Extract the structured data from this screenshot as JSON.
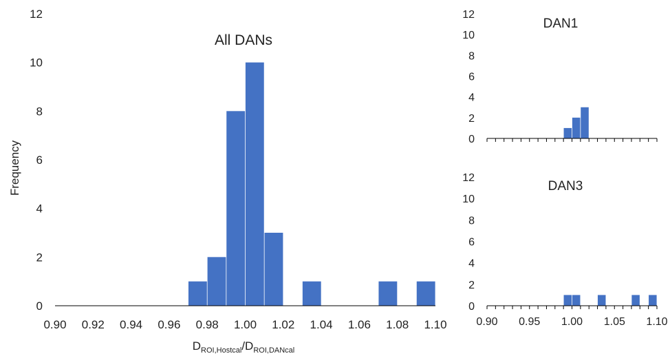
{
  "colors": {
    "bar": "#4472C4",
    "axis": "#000000",
    "text": "#222222"
  },
  "chart_data": [
    {
      "id": "all",
      "type": "bar",
      "title": "All DANs",
      "ylabel": "Frequency",
      "xlabel": {
        "main": "D",
        "sub1": "ROI,Hostcal",
        "slash": "/D",
        "sub2": "ROI,DANcal"
      },
      "bins": [
        0.9,
        0.91,
        0.92,
        0.93,
        0.94,
        0.95,
        0.96,
        0.97,
        0.98,
        0.99,
        1.0,
        1.01,
        1.02,
        1.03,
        1.04,
        1.05,
        1.06,
        1.07,
        1.08,
        1.09
      ],
      "bin_width": 0.01,
      "values": [
        0,
        0,
        0,
        0,
        0,
        0,
        0,
        1,
        2,
        8,
        10,
        3,
        0,
        1,
        0,
        0,
        0,
        1,
        0,
        1
      ],
      "xlim": [
        0.9,
        1.1
      ],
      "ylim": [
        0,
        12
      ],
      "yticks": [
        "0",
        "2",
        "4",
        "6",
        "8",
        "10",
        "12"
      ],
      "xticks": [
        "0.90",
        "0.92",
        "0.94",
        "0.96",
        "0.98",
        "1.00",
        "1.02",
        "1.04",
        "1.06",
        "1.08",
        "1.10"
      ]
    },
    {
      "id": "dan1",
      "type": "bar",
      "title": "DAN1",
      "bins": [
        0.9,
        0.91,
        0.92,
        0.93,
        0.94,
        0.95,
        0.96,
        0.97,
        0.98,
        0.99,
        1.0,
        1.01,
        1.02,
        1.03,
        1.04,
        1.05,
        1.06,
        1.07,
        1.08,
        1.09
      ],
      "bin_width": 0.01,
      "values": [
        0,
        0,
        0,
        0,
        0,
        0,
        0,
        0,
        0,
        1,
        2,
        3,
        0,
        0,
        0,
        0,
        0,
        0,
        0,
        0
      ],
      "xlim": [
        0.9,
        1.1
      ],
      "ylim": [
        0,
        12
      ],
      "yticks": [
        "0",
        "2",
        "4",
        "6",
        "8",
        "10",
        "12"
      ],
      "xticks": []
    },
    {
      "id": "dan3",
      "type": "bar",
      "title": "DAN3",
      "bins": [
        0.9,
        0.91,
        0.92,
        0.93,
        0.94,
        0.95,
        0.96,
        0.97,
        0.98,
        0.99,
        1.0,
        1.01,
        1.02,
        1.03,
        1.04,
        1.05,
        1.06,
        1.07,
        1.08,
        1.09
      ],
      "bin_width": 0.01,
      "values": [
        0,
        0,
        0,
        0,
        0,
        0,
        0,
        0,
        0,
        1,
        1,
        0,
        0,
        1,
        0,
        0,
        0,
        1,
        0,
        1
      ],
      "xlim": [
        0.9,
        1.1
      ],
      "ylim": [
        0,
        12
      ],
      "yticks": [
        "0",
        "2",
        "4",
        "6",
        "8",
        "10",
        "12"
      ],
      "xticks": [
        "0.90",
        "0.95",
        "1.00",
        "1.05",
        "1.10"
      ]
    }
  ]
}
